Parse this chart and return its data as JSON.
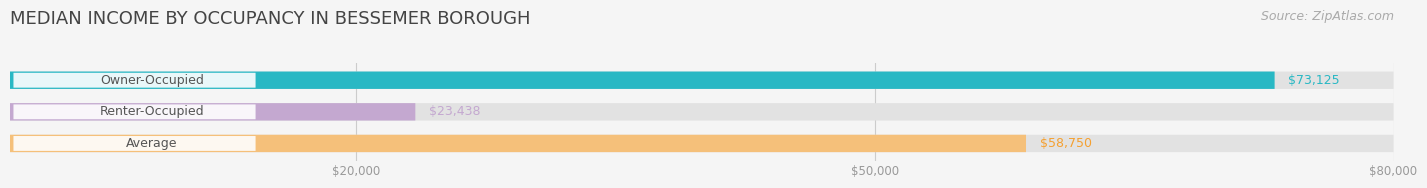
{
  "title": "MEDIAN INCOME BY OCCUPANCY IN BESSEMER BOROUGH",
  "source": "Source: ZipAtlas.com",
  "categories": [
    "Owner-Occupied",
    "Renter-Occupied",
    "Average"
  ],
  "values": [
    73125,
    23438,
    58750
  ],
  "bar_colors": [
    "#29b8c4",
    "#c4a8d0",
    "#f5c07a"
  ],
  "labels": [
    "$73,125",
    "$23,438",
    "$58,750"
  ],
  "xlim": [
    0,
    80000
  ],
  "xticks": [
    20000,
    50000,
    80000
  ],
  "xtick_labels": [
    "$20,000",
    "$50,000",
    "$80,000"
  ],
  "background_color": "#f5f5f5",
  "bar_bg_color": "#e2e2e2",
  "title_fontsize": 13,
  "source_fontsize": 9,
  "label_fontsize": 9,
  "category_fontsize": 9,
  "bar_height": 0.55,
  "label_text_colors": [
    "#29b8c4",
    "#c4a8d0",
    "#f5a030"
  ]
}
